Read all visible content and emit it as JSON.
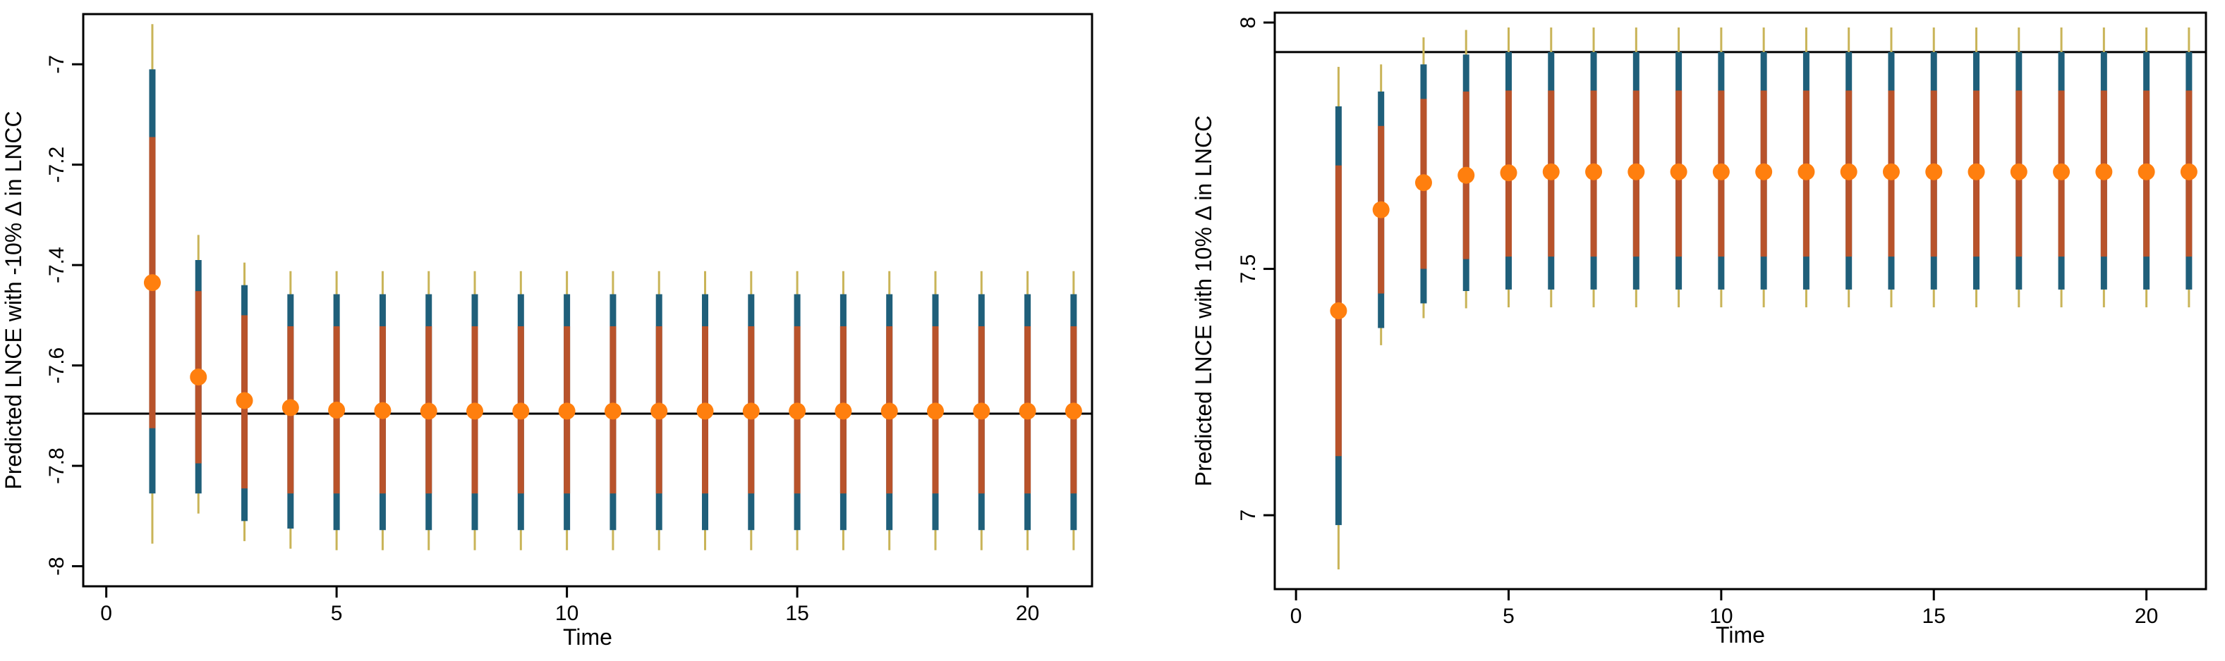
{
  "colors": {
    "outer_interval": "#C9B458",
    "middle_interval": "#1F5F7A",
    "inner_interval": "#B8532B",
    "point": "#FF7F0E",
    "reference_line": "#000000",
    "axis": "#000000"
  },
  "chart_data": [
    {
      "type": "interval",
      "title": "",
      "xlabel": "Time",
      "ylabel": "Predicted LNCE with -10% Δ in LNCC",
      "xlim": [
        -0.5,
        21.4
      ],
      "ylim": [
        -8.04,
        -6.9
      ],
      "xticks": [
        0,
        5,
        10,
        15,
        20
      ],
      "xtick_labels": [
        "0",
        "5",
        "10",
        "15",
        "20"
      ],
      "yticks": [
        -7,
        -7.2,
        -7.4,
        -7.6,
        -7.8,
        -8
      ],
      "ytick_labels": [
        "-7",
        "-7.2",
        "-7.4",
        "-7.6",
        "-7.8",
        "-8"
      ],
      "reference_line": -7.696,
      "x": [
        1,
        2,
        3,
        4,
        5,
        6,
        7,
        8,
        9,
        10,
        11,
        12,
        13,
        14,
        15,
        16,
        17,
        18,
        19,
        20,
        21
      ],
      "point": [
        -7.435,
        -7.623,
        -7.67,
        -7.684,
        -7.689,
        -7.69,
        -7.691,
        -7.691,
        -7.691,
        -7.691,
        -7.691,
        -7.691,
        -7.691,
        -7.691,
        -7.691,
        -7.691,
        -7.691,
        -7.691,
        -7.691,
        -7.691,
        -7.691
      ],
      "inner_low": [
        -7.725,
        -7.795,
        -7.845,
        -7.855,
        -7.855,
        -7.855,
        -7.855,
        -7.855,
        -7.855,
        -7.855,
        -7.855,
        -7.855,
        -7.855,
        -7.855,
        -7.855,
        -7.855,
        -7.855,
        -7.855,
        -7.855,
        -7.855,
        -7.855
      ],
      "inner_high": [
        -7.145,
        -7.452,
        -7.5,
        -7.522,
        -7.522,
        -7.522,
        -7.522,
        -7.522,
        -7.522,
        -7.522,
        -7.522,
        -7.522,
        -7.522,
        -7.522,
        -7.522,
        -7.522,
        -7.522,
        -7.522,
        -7.522,
        -7.522,
        -7.522
      ],
      "middle_low": [
        -7.855,
        -7.855,
        -7.91,
        -7.925,
        -7.928,
        -7.928,
        -7.928,
        -7.928,
        -7.928,
        -7.928,
        -7.928,
        -7.928,
        -7.928,
        -7.928,
        -7.928,
        -7.928,
        -7.928,
        -7.928,
        -7.928,
        -7.928,
        -7.928
      ],
      "middle_high": [
        -7.01,
        -7.39,
        -7.44,
        -7.458,
        -7.458,
        -7.458,
        -7.458,
        -7.458,
        -7.458,
        -7.458,
        -7.458,
        -7.458,
        -7.458,
        -7.458,
        -7.458,
        -7.458,
        -7.458,
        -7.458,
        -7.458,
        -7.458,
        -7.458
      ],
      "outer_low": [
        -7.955,
        -7.895,
        -7.95,
        -7.965,
        -7.968,
        -7.968,
        -7.968,
        -7.968,
        -7.968,
        -7.968,
        -7.968,
        -7.968,
        -7.968,
        -7.968,
        -7.968,
        -7.968,
        -7.968,
        -7.968,
        -7.968,
        -7.968,
        -7.968
      ],
      "outer_high": [
        -6.92,
        -7.34,
        -7.395,
        -7.412,
        -7.412,
        -7.412,
        -7.412,
        -7.412,
        -7.412,
        -7.412,
        -7.412,
        -7.412,
        -7.412,
        -7.412,
        -7.412,
        -7.412,
        -7.412,
        -7.412,
        -7.412,
        -7.412,
        -7.412
      ]
    },
    {
      "type": "interval",
      "title": "",
      "xlabel": "Time",
      "ylabel": "Predicted LNCE with 10% Δ in LNCC",
      "xlim": [
        -0.5,
        21.4
      ],
      "ylim": [
        6.85,
        8.02
      ],
      "xticks": [
        0,
        5,
        10,
        15,
        20
      ],
      "xtick_labels": [
        "0",
        "5",
        "10",
        "15",
        "20"
      ],
      "yticks": [
        7,
        7.5,
        8
      ],
      "ytick_labels": [
        "7",
        "7.5",
        "8"
      ],
      "reference_line": 7.94,
      "x": [
        1,
        2,
        3,
        4,
        5,
        6,
        7,
        8,
        9,
        10,
        11,
        12,
        13,
        14,
        15,
        16,
        17,
        18,
        19,
        20,
        21
      ],
      "point": [
        7.415,
        7.62,
        7.675,
        7.69,
        7.695,
        7.697,
        7.697,
        7.697,
        7.697,
        7.697,
        7.697,
        7.697,
        7.697,
        7.697,
        7.697,
        7.697,
        7.697,
        7.697,
        7.697,
        7.697,
        7.697
      ],
      "inner_low": [
        7.12,
        7.45,
        7.5,
        7.52,
        7.525,
        7.525,
        7.525,
        7.525,
        7.525,
        7.525,
        7.525,
        7.525,
        7.525,
        7.525,
        7.525,
        7.525,
        7.525,
        7.525,
        7.525,
        7.525,
        7.525
      ],
      "inner_high": [
        7.71,
        7.79,
        7.845,
        7.86,
        7.862,
        7.862,
        7.862,
        7.862,
        7.862,
        7.862,
        7.862,
        7.862,
        7.862,
        7.862,
        7.862,
        7.862,
        7.862,
        7.862,
        7.862,
        7.862,
        7.862
      ],
      "middle_low": [
        6.98,
        7.38,
        7.43,
        7.455,
        7.458,
        7.458,
        7.458,
        7.458,
        7.458,
        7.458,
        7.458,
        7.458,
        7.458,
        7.458,
        7.458,
        7.458,
        7.458,
        7.458,
        7.458,
        7.458,
        7.458
      ],
      "middle_high": [
        7.83,
        7.86,
        7.915,
        7.935,
        7.94,
        7.94,
        7.94,
        7.94,
        7.94,
        7.94,
        7.94,
        7.94,
        7.94,
        7.94,
        7.94,
        7.94,
        7.94,
        7.94,
        7.94,
        7.94,
        7.94
      ],
      "outer_low": [
        6.89,
        7.345,
        7.4,
        7.42,
        7.422,
        7.422,
        7.422,
        7.422,
        7.422,
        7.422,
        7.422,
        7.422,
        7.422,
        7.422,
        7.422,
        7.422,
        7.422,
        7.422,
        7.422,
        7.422,
        7.422
      ],
      "outer_high": [
        7.91,
        7.915,
        7.97,
        7.985,
        7.99,
        7.99,
        7.99,
        7.99,
        7.99,
        7.99,
        7.99,
        7.99,
        7.99,
        7.99,
        7.99,
        7.99,
        7.99,
        7.99,
        7.99,
        7.99,
        7.99
      ]
    }
  ]
}
